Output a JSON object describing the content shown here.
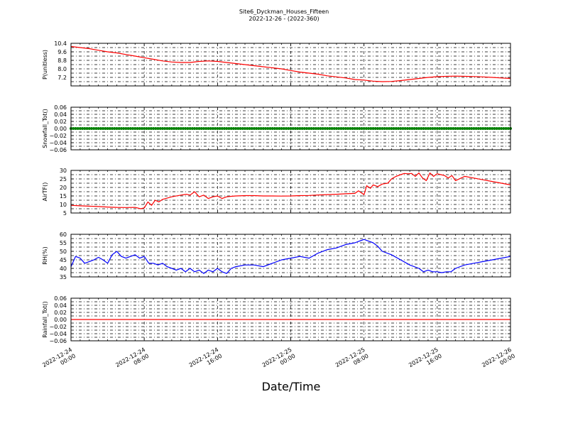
{
  "chart_data": {
    "type": "line",
    "title": "Site6_Dyckman_Houses_Fifteen",
    "subtitle": "2022-12-26 - (2022-360)",
    "xlabel": "Date/Time",
    "x_ticks": [
      [
        "2022-12-24",
        "00:00"
      ],
      [
        "2022-12-24",
        "08:00"
      ],
      [
        "2022-12-24",
        "16:00"
      ],
      [
        "2022-12-25",
        "00:00"
      ],
      [
        "2022-12-25",
        "08:00"
      ],
      [
        "2022-12-25",
        "16:00"
      ],
      [
        "2022-12-26",
        "00:00"
      ]
    ],
    "x_range_hours": [
      0,
      48
    ],
    "grid": true,
    "panels": [
      {
        "ylabel": "P(unitless)",
        "ylim": [
          6.4,
          10.4
        ],
        "yticks": [
          "10.4",
          "9.6",
          "8.8",
          "8.0",
          "7.2"
        ],
        "ytick_values": [
          10.4,
          9.6,
          8.8,
          8.0,
          7.2
        ],
        "minor_step": 0.4,
        "color": "#ff0000",
        "series": [
          {
            "x": [
              0,
              1,
              2,
              3,
              4,
              5,
              6,
              7,
              8,
              9,
              10,
              11,
              12,
              13,
              14,
              15,
              16,
              17,
              18,
              19,
              20,
              21,
              22,
              23,
              24,
              25,
              26,
              27,
              28,
              29,
              30,
              31,
              32,
              33,
              34,
              35,
              36,
              37,
              38,
              39,
              40,
              41,
              42,
              43,
              44,
              45,
              46,
              47,
              48
            ],
            "values": [
              10.1,
              10.0,
              9.9,
              9.75,
              9.6,
              9.5,
              9.35,
              9.2,
              9.05,
              8.9,
              8.75,
              8.65,
              8.6,
              8.6,
              8.7,
              8.75,
              8.7,
              8.6,
              8.5,
              8.4,
              8.3,
              8.2,
              8.1,
              8.0,
              7.85,
              7.7,
              7.6,
              7.5,
              7.35,
              7.25,
              7.15,
              7.0,
              6.95,
              6.85,
              6.8,
              6.82,
              6.9,
              7.0,
              7.1,
              7.2,
              7.27,
              7.3,
              7.32,
              7.3,
              7.28,
              7.25,
              7.2,
              7.15,
              7.1
            ]
          }
        ]
      },
      {
        "ylabel": "Snowfall_Tot()",
        "ylim": [
          -0.06,
          0.06
        ],
        "yticks": [
          "0.06",
          "0.04",
          "0.02",
          "0.00",
          "−0.02",
          "−0.04",
          "−0.06"
        ],
        "ytick_values": [
          0.06,
          0.04,
          0.02,
          0.0,
          -0.02,
          -0.04,
          -0.06
        ],
        "minor_step": 0.01,
        "color": "#008000",
        "markers": true,
        "series": [
          {
            "x": [
              0,
              48
            ],
            "values": [
              0.0,
              0.0
            ]
          }
        ]
      },
      {
        "ylabel": "AirTF()",
        "ylim": [
          5,
          30
        ],
        "yticks": [
          "30",
          "25",
          "20",
          "15",
          "10",
          "5"
        ],
        "ytick_values": [
          30,
          25,
          20,
          15,
          10,
          5
        ],
        "minor_step": 2.5,
        "color": "#ff0000",
        "series": [
          {
            "x": [
              0,
              1,
              2,
              3,
              4,
              5,
              6,
              7,
              7.6,
              8,
              8.4,
              8.8,
              9.2,
              9.6,
              10,
              11,
              12,
              12.6,
              13,
              13.5,
              14,
              14.5,
              15,
              15.5,
              16,
              16.5,
              17,
              17.5,
              18,
              19,
              20,
              21,
              22,
              23,
              24,
              25,
              26,
              27,
              28,
              29,
              30,
              31,
              31.4,
              32,
              32.3,
              32.7,
              33,
              33.5,
              34,
              34.6,
              35,
              35.5,
              36,
              36.4,
              36.8,
              37.2,
              37.6,
              38,
              38.4,
              38.8,
              39.2,
              39.6,
              40,
              40.4,
              40.8,
              41.2,
              41.6,
              42,
              43,
              44,
              45,
              46,
              47,
              48
            ],
            "values": [
              9.5,
              9.2,
              9.0,
              8.8,
              8.5,
              8.3,
              8.2,
              8.3,
              7.5,
              8.0,
              11.5,
              9.5,
              12.5,
              11.5,
              13,
              14.5,
              15.5,
              16,
              15.5,
              17.5,
              14.5,
              15.5,
              13.5,
              14.5,
              15,
              13.5,
              14.5,
              14.8,
              15,
              15.2,
              15.2,
              15,
              15,
              14.9,
              15,
              15.2,
              15.3,
              15.6,
              15.8,
              16,
              16.3,
              16.5,
              18,
              15.8,
              21,
              19.5,
              21.5,
              20.5,
              22,
              22.5,
              25,
              26.5,
              27.5,
              28.2,
              28,
              28.2,
              26.5,
              28.5,
              25.5,
              24,
              28.5,
              26.5,
              28,
              27.5,
              27,
              25.5,
              27,
              24,
              26.5,
              25.5,
              24.5,
              23.5,
              22.5,
              21.5
            ]
          }
        ]
      },
      {
        "ylabel": "RH(%)",
        "ylim": [
          35,
          60
        ],
        "yticks": [
          "60",
          "55",
          "50",
          "45",
          "40",
          "35"
        ],
        "ytick_values": [
          60,
          55,
          50,
          45,
          40,
          35
        ],
        "minor_step": 2.5,
        "color": "#0000ff",
        "series": [
          {
            "x": [
              0,
              0.5,
              1,
              1.5,
              2,
              2.5,
              3,
              3.5,
              4,
              4.5,
              5,
              5.5,
              6,
              6.5,
              7,
              7.5,
              8,
              8.5,
              9,
              9.5,
              10,
              10.5,
              11,
              11.5,
              12,
              12.5,
              13,
              13.5,
              14,
              14.5,
              15,
              15.5,
              16,
              16.5,
              17,
              17.5,
              18,
              19,
              20,
              21,
              22,
              23,
              24,
              25,
              26,
              27,
              28,
              29,
              30,
              31,
              31.5,
              32,
              32.5,
              33,
              33.5,
              34,
              35,
              36,
              37,
              38,
              38.5,
              39,
              39.5,
              40,
              40.5,
              41,
              41.5,
              42,
              43,
              44,
              45,
              46,
              47,
              48
            ],
            "values": [
              41,
              47,
              46,
              43,
              44,
              45,
              46.5,
              45,
              43,
              48,
              50,
              47,
              46,
              47,
              48,
              46,
              47,
              43,
              43,
              42,
              43,
              41,
              40,
              39,
              40,
              38,
              40,
              38,
              39,
              37,
              39,
              38,
              40,
              38,
              37,
              40,
              41,
              42,
              42,
              41,
              43,
              45,
              46,
              47,
              46,
              49,
              51,
              52,
              54,
              55,
              56,
              57,
              56,
              55,
              53,
              50,
              48,
              45,
              42,
              40,
              38,
              39,
              38,
              38,
              37.5,
              38,
              38,
              40,
              42,
              43,
              44,
              45,
              46,
              47
            ]
          }
        ]
      },
      {
        "ylabel": "Rainfall_Tot()",
        "ylim": [
          -0.06,
          0.06
        ],
        "yticks": [
          "0.06",
          "0.04",
          "0.02",
          "0.00",
          "−0.02",
          "−0.04",
          "−0.06"
        ],
        "ytick_values": [
          0.06,
          0.04,
          0.02,
          0.0,
          -0.02,
          -0.04,
          -0.06
        ],
        "minor_step": 0.01,
        "color": "#ff0000",
        "series": [
          {
            "x": [
              0,
              48
            ],
            "values": [
              0.0,
              0.0
            ]
          }
        ]
      }
    ]
  }
}
